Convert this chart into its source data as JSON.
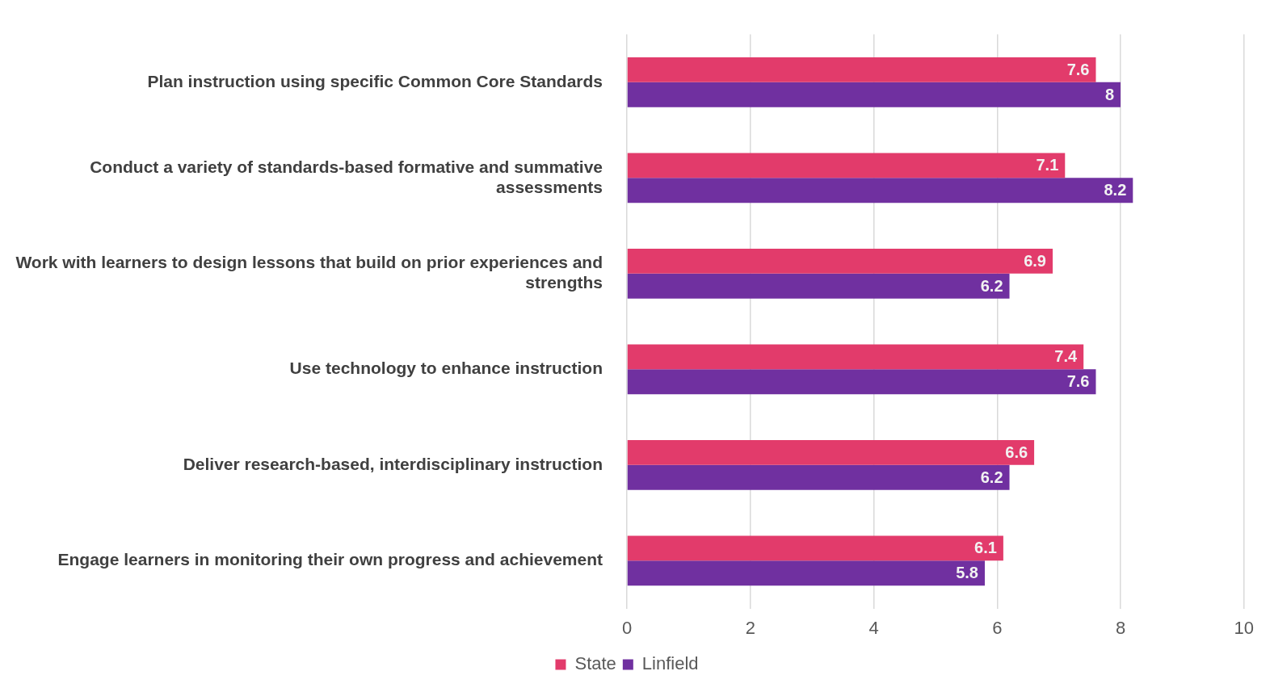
{
  "chart_data": {
    "type": "bar",
    "orientation": "horizontal",
    "categories": [
      "Plan instruction using specific Common Core Standards",
      "Conduct a variety of standards-based formative and summative assessments",
      "Work with learners to design lessons that build on prior experiences and strengths",
      "Use technology to enhance instruction",
      "Deliver research-based, interdisciplinary instruction",
      "Engage learners in monitoring their own progress and achievement"
    ],
    "series": [
      {
        "name": "State",
        "color": "#e23b6b",
        "values": [
          7.6,
          7.1,
          6.9,
          7.4,
          6.6,
          6.1
        ]
      },
      {
        "name": "Linfield",
        "color": "#7030a0",
        "values": [
          8,
          8.2,
          6.2,
          7.6,
          6.2,
          5.8
        ]
      }
    ],
    "xlim": [
      0,
      10
    ],
    "xticks": [
      0,
      2,
      4,
      6,
      8,
      10
    ],
    "grid": "x",
    "legend": "bottom",
    "data_labels": true
  }
}
